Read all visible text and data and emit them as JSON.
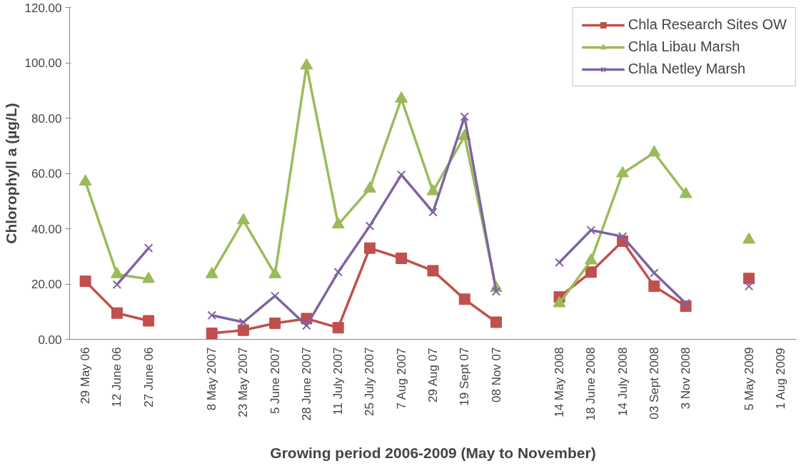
{
  "chart_data": {
    "type": "line",
    "xlabel": "Growing period 2006-2009 (May to November)",
    "ylabel": "Chlorophyll a (µg/L)",
    "categories": [
      "29 May 06",
      "12 June 06",
      "27 June 06",
      null,
      "8 May 2007",
      "23 May 2007",
      "5 June 2007",
      "28 June 2007",
      "11 July 2007",
      "25 July 2007",
      "7 Aug 2007",
      "29 Aug 07",
      "19 Sept 07",
      "08 Nov 07",
      null,
      "14 May 2008",
      "18 June 2008",
      "14 July 2008",
      "03 Sept 2008",
      "3 Nov 2008",
      null,
      "5 May 2009",
      "1 Aug 2009"
    ],
    "series": [
      {
        "name": "Chla Research Sites OW",
        "color": "#c0504d",
        "marker": "square",
        "values": [
          21,
          9.5,
          6.7,
          null,
          2.2,
          3.3,
          5.8,
          7.5,
          4.2,
          33,
          29.3,
          24.8,
          14.5,
          6.2,
          null,
          15.3,
          24.3,
          35.5,
          19.2,
          12,
          null,
          22,
          null
        ]
      },
      {
        "name": "Chla Libau Marsh",
        "color": "#9bbb59",
        "marker": "triangle",
        "values": [
          57,
          23.5,
          21.8,
          null,
          23.5,
          43,
          23.5,
          99,
          41.5,
          54.5,
          87,
          53.5,
          73.5,
          18.5,
          null,
          13,
          28.5,
          60,
          67.5,
          52.5,
          null,
          36,
          null
        ]
      },
      {
        "name": "Chla Netley Marsh",
        "color": "#8064a2",
        "marker": "cross",
        "values": [
          null,
          19.8,
          33,
          null,
          8.7,
          6.2,
          15.7,
          5,
          24.3,
          41,
          59.5,
          46,
          80.5,
          17.3,
          null,
          27.8,
          39.5,
          37.2,
          24,
          13,
          null,
          19.2,
          null
        ]
      }
    ],
    "ylim": [
      0,
      120
    ],
    "yticks": [
      {
        "value": 0,
        "label": "0.00"
      },
      {
        "value": 20,
        "label": "20.00"
      },
      {
        "value": 40,
        "label": "40.00"
      },
      {
        "value": 60,
        "label": "60.00"
      },
      {
        "value": 80,
        "label": "80.00"
      },
      {
        "value": 100,
        "label": "100.00"
      },
      {
        "value": 120,
        "label": "120.00"
      }
    ],
    "grid": false,
    "legend": "top right"
  }
}
